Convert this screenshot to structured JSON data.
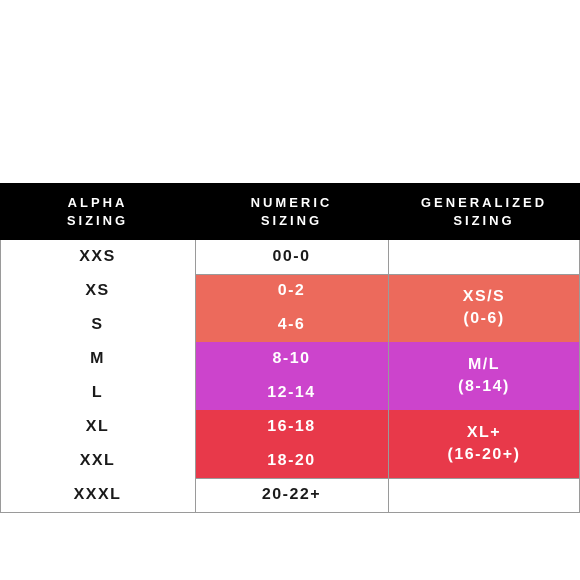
{
  "table": {
    "headers": [
      [
        "ALPHA",
        "SIZING"
      ],
      [
        "NUMERIC",
        "SIZING"
      ],
      [
        "GENERALIZED",
        "SIZING"
      ]
    ],
    "rows": [
      [
        "XXS",
        "00-0"
      ],
      [
        "XS",
        "0-2"
      ],
      [
        "S",
        "4-6"
      ],
      [
        "M",
        "8-10"
      ],
      [
        "L",
        "12-14"
      ],
      [
        "XL",
        "16-18"
      ],
      [
        "XXL",
        "18-20"
      ],
      [
        "XXXL",
        "20-22+"
      ]
    ],
    "groups": [
      [
        "XS/S",
        "(0-6)"
      ],
      [
        "M/L",
        "(8-14)"
      ],
      [
        "XL+",
        "(16-20+)"
      ]
    ]
  }
}
